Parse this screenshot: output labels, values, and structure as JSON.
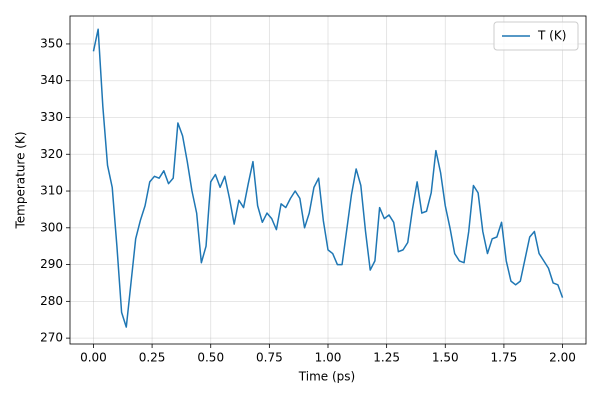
{
  "chart_data": {
    "type": "line",
    "x_label": "Time (ps)",
    "y_label": "Temperature (K)",
    "x": [
      0.0,
      0.02,
      0.04,
      0.06,
      0.08,
      0.1,
      0.12,
      0.14,
      0.16,
      0.18,
      0.2,
      0.22,
      0.24,
      0.26,
      0.28,
      0.3,
      0.32,
      0.34,
      0.36,
      0.38,
      0.4,
      0.42,
      0.44,
      0.46,
      0.48,
      0.5,
      0.52,
      0.54,
      0.56,
      0.58,
      0.6,
      0.62,
      0.64,
      0.66,
      0.68,
      0.7,
      0.72,
      0.74,
      0.76,
      0.78,
      0.8,
      0.82,
      0.84,
      0.86,
      0.88,
      0.9,
      0.92,
      0.94,
      0.96,
      0.98,
      1.0,
      1.02,
      1.04,
      1.06,
      1.08,
      1.1,
      1.12,
      1.14,
      1.16,
      1.18,
      1.2,
      1.22,
      1.24,
      1.26,
      1.28,
      1.3,
      1.32,
      1.34,
      1.36,
      1.38,
      1.4,
      1.42,
      1.44,
      1.46,
      1.48,
      1.5,
      1.52,
      1.54,
      1.56,
      1.58,
      1.6,
      1.62,
      1.64,
      1.66,
      1.68,
      1.7,
      1.72,
      1.74,
      1.76,
      1.78,
      1.8,
      1.82,
      1.84,
      1.86,
      1.88,
      1.9,
      1.92,
      1.94,
      1.96,
      1.98,
      2.0
    ],
    "series": [
      {
        "name": "T (K)",
        "color": "#1f77b4",
        "values": [
          348,
          354,
          333,
          317,
          311,
          295,
          277,
          273,
          285,
          297,
          302,
          306,
          312.5,
          314,
          313.5,
          315.5,
          312,
          313.5,
          328.5,
          325,
          318,
          310,
          304,
          290.5,
          295,
          312.5,
          314.5,
          311,
          314,
          308,
          301,
          307.5,
          305.5,
          312,
          318,
          306,
          301.5,
          304,
          302.5,
          299.5,
          306.5,
          305.5,
          308,
          310,
          308,
          300,
          304,
          311,
          313.5,
          302,
          294,
          293,
          290,
          290,
          299.5,
          309,
          316,
          311.5,
          299,
          288.5,
          291,
          305.5,
          302.5,
          303.5,
          301.5,
          293.5,
          294,
          296,
          305,
          312.5,
          304,
          304.5,
          309.5,
          321,
          315,
          306,
          300,
          293,
          291,
          290.5,
          299,
          311.5,
          309.5,
          299,
          293,
          297,
          297.5,
          301.5,
          291,
          285.5,
          284.5,
          285.5,
          291.5,
          297.5,
          299,
          293,
          291,
          289,
          285,
          284.5,
          281
        ]
      }
    ],
    "xlim": [
      -0.1,
      2.1
    ],
    "ylim": [
      268.4,
      357.6
    ],
    "xticks": [
      {
        "value": 0.0,
        "label": "0.00"
      },
      {
        "value": 0.25,
        "label": "0.25"
      },
      {
        "value": 0.5,
        "label": "0.50"
      },
      {
        "value": 0.75,
        "label": "0.75"
      },
      {
        "value": 1.0,
        "label": "1.00"
      },
      {
        "value": 1.25,
        "label": "1.25"
      },
      {
        "value": 1.5,
        "label": "1.50"
      },
      {
        "value": 1.75,
        "label": "1.75"
      },
      {
        "value": 2.0,
        "label": "2.00"
      }
    ],
    "yticks": [
      270,
      280,
      290,
      300,
      310,
      320,
      330,
      340,
      350
    ],
    "grid": true,
    "legend": "upper right"
  }
}
